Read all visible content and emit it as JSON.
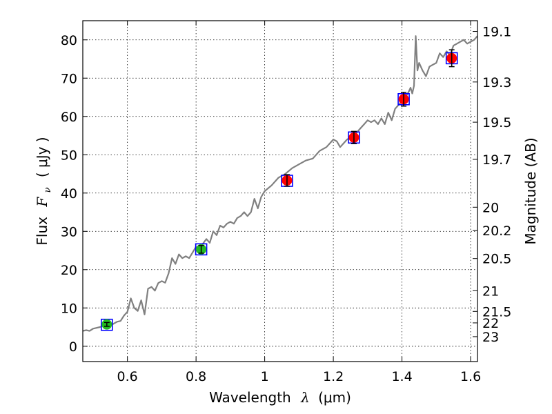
{
  "chart_data": {
    "type": "line",
    "xlabel_prefix": "Wavelength",
    "xlabel_symbol": "λ",
    "xlabel_unit": "(μm)",
    "ylabel_prefix": "Flux",
    "ylabel_symbol": "F",
    "ylabel_subscript": "ν",
    "ylabel_unit": "( μJy )",
    "y2label": "Magnitude (AB)",
    "xlim": [
      0.47,
      1.62
    ],
    "ylim": [
      -4,
      85
    ],
    "grid": true,
    "x_ticks": [
      {
        "value": 0.6,
        "label": "0.6"
      },
      {
        "value": 0.8,
        "label": "0.8"
      },
      {
        "value": 1.0,
        "label": "1"
      },
      {
        "value": 1.2,
        "label": "1.2"
      },
      {
        "value": 1.4,
        "label": "1.4"
      },
      {
        "value": 1.6,
        "label": "1.6"
      }
    ],
    "y_ticks": [
      {
        "value": 0,
        "label": "0"
      },
      {
        "value": 10,
        "label": "10"
      },
      {
        "value": 20,
        "label": "20"
      },
      {
        "value": 30,
        "label": "30"
      },
      {
        "value": 40,
        "label": "40"
      },
      {
        "value": 50,
        "label": "50"
      },
      {
        "value": 60,
        "label": "60"
      },
      {
        "value": 70,
        "label": "70"
      },
      {
        "value": 80,
        "label": "80"
      }
    ],
    "y2_ticks": [
      {
        "flux": 82.2,
        "label": "19.1"
      },
      {
        "flux": 69.0,
        "label": "19.3"
      },
      {
        "flux": 58.5,
        "label": "19.5"
      },
      {
        "flux": 48.8,
        "label": "19.7"
      },
      {
        "flux": 36.3,
        "label": "20"
      },
      {
        "flux": 30.2,
        "label": "20.2"
      },
      {
        "flux": 22.9,
        "label": "20.5"
      },
      {
        "flux": 14.5,
        "label": "21"
      },
      {
        "flux": 9.1,
        "label": "21.5"
      },
      {
        "flux": 6.1,
        "label": "22"
      },
      {
        "flux": 2.5,
        "label": "23"
      }
    ],
    "spectrum": {
      "name": "model spectrum",
      "color": "#808080",
      "x": [
        0.47,
        0.48,
        0.49,
        0.5,
        0.51,
        0.52,
        0.53,
        0.54,
        0.55,
        0.56,
        0.57,
        0.58,
        0.59,
        0.6,
        0.61,
        0.62,
        0.63,
        0.64,
        0.65,
        0.66,
        0.67,
        0.68,
        0.69,
        0.7,
        0.71,
        0.72,
        0.73,
        0.74,
        0.75,
        0.76,
        0.77,
        0.78,
        0.79,
        0.8,
        0.81,
        0.82,
        0.83,
        0.84,
        0.85,
        0.86,
        0.87,
        0.88,
        0.89,
        0.9,
        0.91,
        0.92,
        0.93,
        0.94,
        0.95,
        0.96,
        0.97,
        0.98,
        0.99,
        1.0,
        1.02,
        1.04,
        1.06,
        1.08,
        1.1,
        1.12,
        1.14,
        1.16,
        1.18,
        1.2,
        1.21,
        1.22,
        1.23,
        1.24,
        1.25,
        1.26,
        1.27,
        1.28,
        1.29,
        1.3,
        1.31,
        1.32,
        1.33,
        1.34,
        1.35,
        1.36,
        1.37,
        1.38,
        1.39,
        1.4,
        1.41,
        1.42,
        1.425,
        1.43,
        1.435,
        1.44,
        1.445,
        1.45,
        1.46,
        1.47,
        1.48,
        1.49,
        1.5,
        1.51,
        1.52,
        1.53,
        1.54,
        1.55,
        1.56,
        1.57,
        1.58,
        1.59,
        1.6,
        1.61,
        1.62
      ],
      "y": [
        4.0,
        4.2,
        4.0,
        4.6,
        4.8,
        5.0,
        5.4,
        5.6,
        5.3,
        5.9,
        6.4,
        6.6,
        8.0,
        9.0,
        12.5,
        10.0,
        9.2,
        12.0,
        8.3,
        15.0,
        15.5,
        14.5,
        16.5,
        17.0,
        16.6,
        19.0,
        23.0,
        21.5,
        24.0,
        23.0,
        23.5,
        23.0,
        24.5,
        26.0,
        25.0,
        26.8,
        28.0,
        27.0,
        30.0,
        29.0,
        31.5,
        31.0,
        32.0,
        32.5,
        32.0,
        33.5,
        34.0,
        35.0,
        34.0,
        35.0,
        38.5,
        36.0,
        39.0,
        40.5,
        42.0,
        44.0,
        45.0,
        46.5,
        47.5,
        48.5,
        49.0,
        51.0,
        52.0,
        54.0,
        53.5,
        52.0,
        53.0,
        54.0,
        54.5,
        55.0,
        56.0,
        57.0,
        58.0,
        59.0,
        58.5,
        59.0,
        58.0,
        59.5,
        58.0,
        61.0,
        59.0,
        62.0,
        63.0,
        64.0,
        65.0,
        66.5,
        67.5,
        66.0,
        68.0,
        81.0,
        72.0,
        74.0,
        72.0,
        70.5,
        73.0,
        73.5,
        74.0,
        76.5,
        75.5,
        77.0,
        76.0,
        78.5,
        79.0,
        79.5,
        80.0,
        79.0,
        79.5,
        80.0,
        81.0
      ]
    },
    "photometry": [
      {
        "x": 0.54,
        "y": 5.7,
        "err": 0.5,
        "color": "#22bb22"
      },
      {
        "x": 0.815,
        "y": 25.3,
        "err": 1.0,
        "color": "#22bb22"
      },
      {
        "x": 1.065,
        "y": 43.3,
        "err": 1.5,
        "color": "#ff0000"
      },
      {
        "x": 1.26,
        "y": 54.5,
        "err": 1.6,
        "color": "#ff0000"
      },
      {
        "x": 1.405,
        "y": 64.5,
        "err": 1.8,
        "color": "#ff0000"
      },
      {
        "x": 1.545,
        "y": 75.2,
        "err": 2.2,
        "color": "#ff0000"
      }
    ],
    "model_points": [
      {
        "x": 0.54,
        "y": 5.6
      },
      {
        "x": 0.815,
        "y": 25.3
      },
      {
        "x": 1.065,
        "y": 43.2
      },
      {
        "x": 1.26,
        "y": 54.5
      },
      {
        "x": 1.405,
        "y": 64.5
      },
      {
        "x": 1.545,
        "y": 75.2
      }
    ],
    "model_point_color": "#0000ff"
  }
}
